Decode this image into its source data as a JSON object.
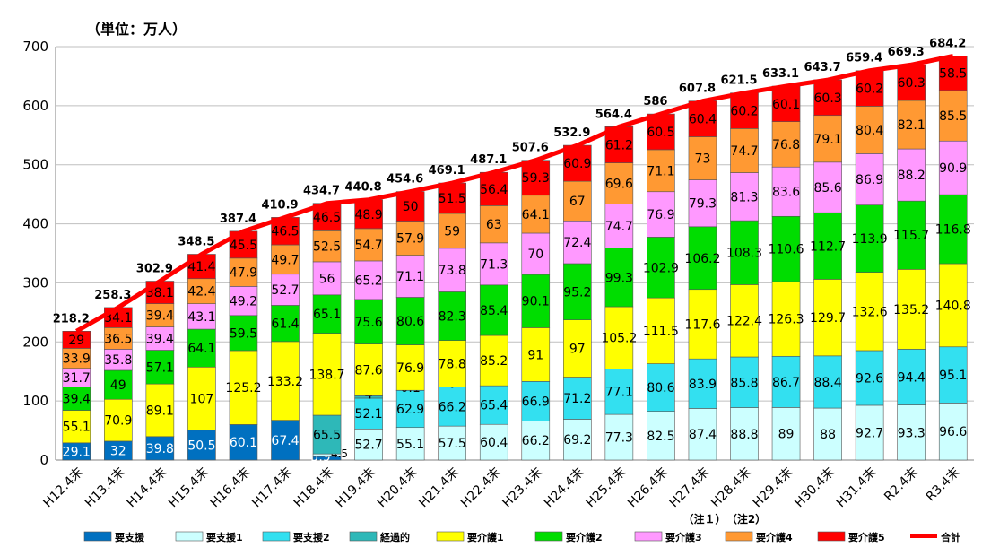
{
  "chart_data": {
    "type": "bar",
    "stacked": true,
    "unit_label": "（単位：万人）",
    "ylim": [
      0,
      700
    ],
    "yticks": [
      0,
      100,
      200,
      300,
      400,
      500,
      600,
      700
    ],
    "categories": [
      "H12.4末",
      "H13.4末",
      "H14.4末",
      "H15.4末",
      "H16.4末",
      "H17.4末",
      "H18.4末",
      "H19.4末",
      "H20.4末",
      "H21.4末",
      "H22.4末",
      "H23.4末",
      "H24.4末",
      "H25.4末",
      "H26.4末",
      "H27.4末",
      "H28.4末",
      "H29.4末",
      "H30.4末",
      "H31.4末",
      "R2.4末",
      "R3.4末"
    ],
    "notes": [
      {
        "category_index": 15,
        "text": "（注１）"
      },
      {
        "category_index": 16,
        "text": "（注2）"
      }
    ],
    "series": [
      {
        "name": "要支援",
        "color": "#0070C0",
        "values": [
          29.1,
          32,
          39.8,
          50.5,
          60.1,
          67.4,
          5.9,
          null,
          null,
          null,
          null,
          null,
          null,
          null,
          null,
          null,
          null,
          null,
          null,
          null,
          null,
          null
        ],
        "labels": [
          "29.1",
          "32",
          "39.8",
          "50.5",
          "60.1",
          "67.4",
          "5.9",
          "",
          "",
          "",
          "",
          "",
          "",
          "",
          "",
          "",
          "",
          "",
          "",
          "",
          "",
          ""
        ]
      },
      {
        "name": "要支援1",
        "color": "#CCFFFF",
        "values": [
          null,
          null,
          null,
          null,
          null,
          null,
          4.5,
          52.7,
          55.1,
          57.5,
          60.4,
          66.2,
          69.2,
          77.3,
          82.5,
          87.4,
          88.8,
          89,
          88,
          92.7,
          93.3,
          96.6
        ],
        "labels": [
          "",
          "",
          "",
          "",
          "",
          "",
          "4.5",
          "52.7",
          "55.1",
          "57.5",
          "60.4",
          "66.2",
          "69.2",
          "77.3",
          "82.5",
          "87.4",
          "88.8",
          "89",
          "88",
          "92.7",
          "93.3",
          "96.6"
        ]
      },
      {
        "name": "要支援2",
        "color": "#33E0F0",
        "values": [
          null,
          null,
          null,
          null,
          null,
          null,
          null,
          52.1,
          62.9,
          66.2,
          65.4,
          66.9,
          71.2,
          77.1,
          80.6,
          83.9,
          85.8,
          86.7,
          88.4,
          92.6,
          94.4,
          95.1
        ],
        "labels": [
          "",
          "",
          "",
          "",
          "",
          "",
          "",
          "52.1",
          "62.9",
          "66.2",
          "65.4",
          "66.9",
          "71.2",
          "77.1",
          "80.6",
          "83.9",
          "85.8",
          "86.7",
          "88.4",
          "92.6",
          "94.4",
          "95.1"
        ]
      },
      {
        "name": "経過的",
        "color": "#2EB8B8",
        "values": [
          null,
          null,
          null,
          null,
          null,
          null,
          65.5,
          4,
          0.1,
          0,
          null,
          null,
          null,
          null,
          null,
          null,
          null,
          null,
          null,
          null,
          null,
          null
        ],
        "labels": [
          "",
          "",
          "",
          "",
          "",
          "",
          "65.5",
          "4",
          "0.1",
          "0",
          "",
          "",
          "",
          "",
          "",
          "",
          "",
          "",
          "",
          "",
          "",
          ""
        ]
      },
      {
        "name": "要介護1",
        "color": "#FFFF00",
        "values": [
          55.1,
          70.9,
          89.1,
          107,
          125.2,
          133.2,
          138.7,
          87.6,
          76.9,
          78.8,
          85.2,
          91,
          97,
          105.2,
          111.5,
          117.6,
          122.4,
          126.3,
          129.7,
          132.6,
          135.2,
          140.8
        ],
        "labels": [
          "55.1",
          "70.9",
          "89.1",
          "107",
          "125.2",
          "133.2",
          "138.7",
          "87.6",
          "76.9",
          "78.8",
          "85.2",
          "91",
          "97",
          "105.2",
          "111.5",
          "117.6",
          "122.4",
          "126.3",
          "129.7",
          "132.6",
          "135.2",
          "140.8"
        ]
      },
      {
        "name": "要介護2",
        "color": "#00DD00",
        "values": [
          39.4,
          49,
          57.1,
          64.1,
          59.5,
          61.4,
          65.1,
          75.6,
          80.6,
          82.3,
          85.4,
          90.1,
          95.2,
          99.3,
          102.9,
          106.2,
          108.3,
          110.6,
          112.7,
          113.9,
          115.7,
          116.8
        ],
        "labels": [
          "39.4",
          "49",
          "57.1",
          "64.1",
          "59.5",
          "61.4",
          "65.1",
          "75.6",
          "80.6",
          "82.3",
          "85.4",
          "90.1",
          "95.2",
          "99.3",
          "102.9",
          "106.2",
          "108.3",
          "110.6",
          "112.7",
          "113.9",
          "115.7",
          "116.8"
        ]
      },
      {
        "name": "要介護3",
        "color": "#FF99FF",
        "values": [
          31.7,
          35.8,
          39.4,
          43.1,
          49.2,
          52.7,
          56,
          65.2,
          71.1,
          73.8,
          71.3,
          70,
          72.4,
          74.7,
          76.9,
          79.3,
          81.3,
          83.6,
          85.6,
          86.9,
          88.2,
          90.9
        ],
        "labels": [
          "31.7",
          "35.8",
          "39.4",
          "43.1",
          "49.2",
          "52.7",
          "56",
          "65.2",
          "71.1",
          "73.8",
          "71.3",
          "70",
          "72.4",
          "74.7",
          "76.9",
          "79.3",
          "81.3",
          "83.6",
          "85.6",
          "86.9",
          "88.2",
          "90.9"
        ]
      },
      {
        "name": "要介護4",
        "color": "#FF9933",
        "values": [
          33.9,
          36.5,
          39.4,
          42.4,
          47.9,
          49.7,
          52.5,
          54.7,
          57.9,
          59,
          63,
          64.1,
          67,
          69.6,
          71.1,
          73,
          74.7,
          76.8,
          79.1,
          80.4,
          82.1,
          85.5
        ],
        "labels": [
          "33.9",
          "36.5",
          "39.4",
          "42.4",
          "47.9",
          "49.7",
          "52.5",
          "54.7",
          "57.9",
          "59",
          "63",
          "64.1",
          "67",
          "69.6",
          "71.1",
          "73",
          "74.7",
          "76.8",
          "79.1",
          "80.4",
          "82.1",
          "85.5"
        ]
      },
      {
        "name": "要介護5",
        "color": "#FF0000",
        "values": [
          29,
          34.1,
          38.1,
          41.4,
          45.5,
          46.5,
          46.5,
          48.9,
          50,
          51.5,
          56.4,
          59.3,
          60.9,
          61.2,
          60.5,
          60.4,
          60.2,
          60.1,
          60.3,
          60.2,
          60.3,
          58.5
        ],
        "labels": [
          "29",
          "34.1",
          "38.1",
          "41.4",
          "45.5",
          "46.5",
          "46.5",
          "48.9",
          "50",
          "51.5",
          "56.4",
          "59.3",
          "60.9",
          "61.2",
          "60.5",
          "60.4",
          "60.2",
          "60.1",
          "60.3",
          "60.2",
          "60.3",
          "58.5"
        ]
      }
    ],
    "totals": [
      218.2,
      258.3,
      302.9,
      348.5,
      387.4,
      410.9,
      434.7,
      440.8,
      454.6,
      469.1,
      487.1,
      507.6,
      532.9,
      564.4,
      586,
      607.8,
      621.5,
      633.1,
      643.7,
      659.4,
      669.3,
      684.2
    ],
    "total_labels": [
      "218.2",
      "258.3",
      "302.9",
      "348.5",
      "387.4",
      "410.9",
      "434.7",
      "440.8",
      "454.6",
      "469.1",
      "487.1",
      "507.6",
      "532.9",
      "564.4",
      "586",
      "607.8",
      "621.5",
      "633.1",
      "643.7",
      "659.4",
      "669.3",
      "684.2"
    ],
    "total_series": {
      "name": "合計",
      "color": "#FF0000"
    }
  }
}
